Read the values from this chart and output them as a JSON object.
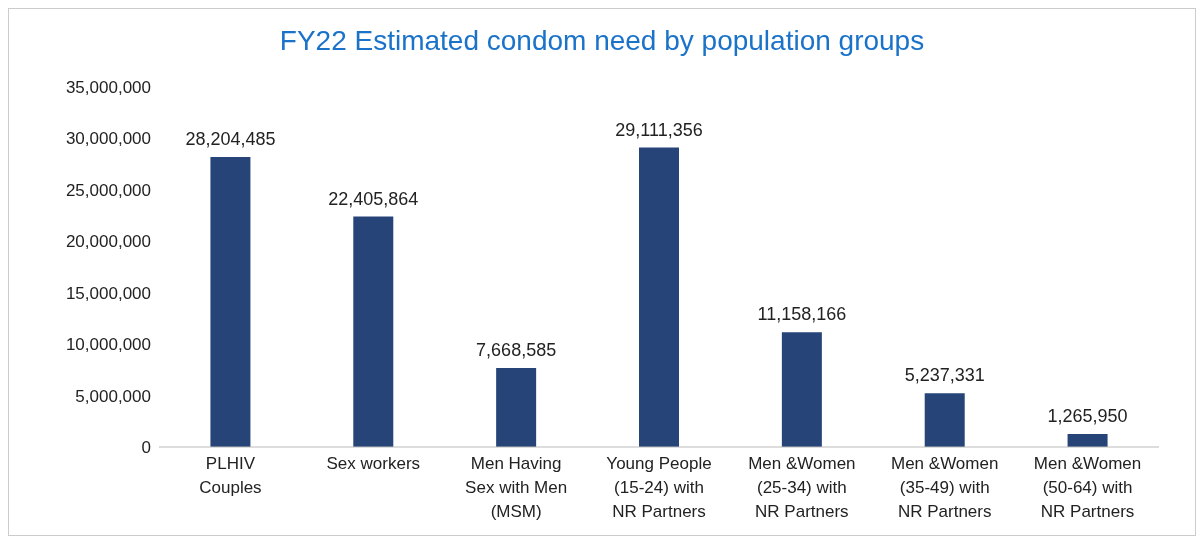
{
  "chart_data": {
    "type": "bar",
    "title": "FY22 Estimated condom need by population groups",
    "categories": [
      "PLHIV Couples",
      "Sex workers",
      "Men Having Sex with Men (MSM)",
      "Young People (15-24) with NR Partners",
      "Men &Women (25-34) with NR Partners",
      "Men &Women (35-49) with NR Partners",
      "Men &Women (50-64) with NR Partners"
    ],
    "values": [
      28204485,
      22405864,
      7668585,
      29111356,
      11158166,
      5237331,
      1265950
    ],
    "value_labels": [
      "28,204,485",
      "22,405,864",
      "7,668,585",
      "29,111,356",
      "11,158,166",
      "5,237,331",
      "1,265,950"
    ],
    "color": "#264478",
    "ylim": [
      0,
      35000000
    ],
    "yticks": [
      0,
      {
        "value": 5000000,
        "label": "5,000,000"
      },
      {
        "value": 10000000,
        "label": "10,000,000"
      },
      {
        "value": 15000000,
        "label": "15,000,000"
      },
      {
        "value": 20000000,
        "label": "20,000,000"
      },
      {
        "value": 25000000,
        "label": "25,000,000"
      },
      {
        "value": 30000000,
        "label": "30,000,000"
      },
      {
        "value": 35000000,
        "label": "35,000,000"
      }
    ],
    "grid": false
  }
}
